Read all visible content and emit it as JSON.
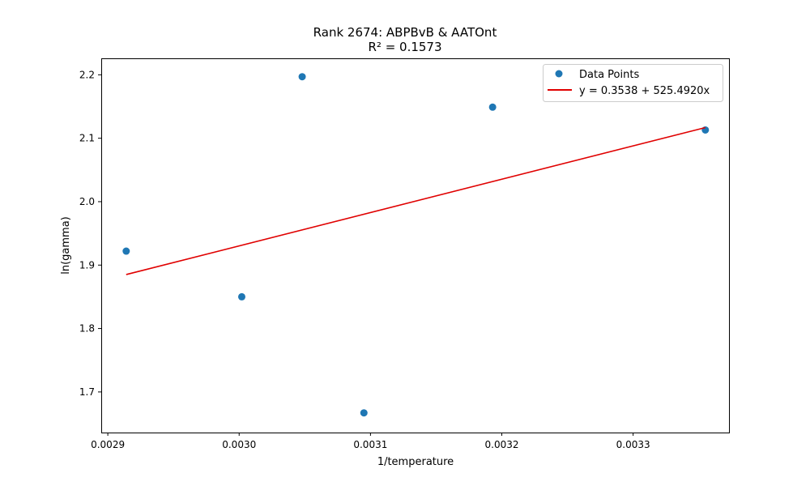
{
  "chart_data": {
    "type": "scatter",
    "title": "Rank 2674: ABPBvB & AATOnt",
    "subtitle": "R² = 0.1573",
    "xlabel": "1/temperature",
    "ylabel": "ln(gamma)",
    "xlim": [
      0.002895,
      0.003373
    ],
    "ylim": [
      1.636,
      2.226
    ],
    "x_ticks": [
      0.0029,
      0.003,
      0.0031,
      0.0032,
      0.0033
    ],
    "x_tick_labels": [
      "0.0029",
      "0.0030",
      "0.0031",
      "0.0032",
      "0.0033"
    ],
    "y_ticks": [
      1.7,
      1.8,
      1.9,
      2.0,
      2.1,
      2.2
    ],
    "y_tick_labels": [
      "1.7",
      "1.8",
      "1.9",
      "2.0",
      "2.1",
      "2.2"
    ],
    "grid": false,
    "legend_position": "top-right",
    "series": [
      {
        "name": "Data Points",
        "kind": "scatter",
        "color": "#1f77b4",
        "x": [
          0.002914,
          0.003002,
          0.003048,
          0.003095,
          0.003193,
          0.003355
        ],
        "y": [
          1.922,
          1.85,
          2.197,
          1.667,
          2.149,
          2.113
        ]
      },
      {
        "name": "y = 0.3538 + 525.4920x",
        "kind": "line",
        "color": "#e00000",
        "intercept": 0.3538,
        "slope": 525.492,
        "x_range": [
          0.002914,
          0.003355
        ]
      }
    ]
  }
}
